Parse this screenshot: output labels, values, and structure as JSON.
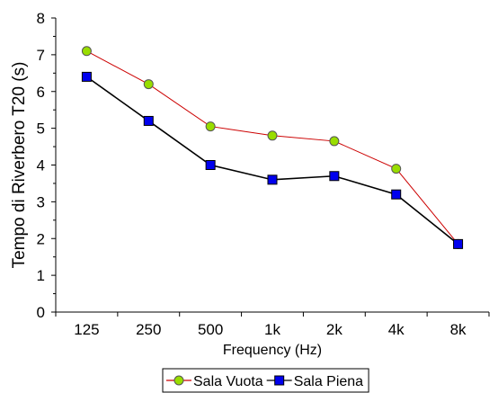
{
  "chart_data": {
    "type": "line",
    "categories": [
      "125",
      "250",
      "500",
      "1k",
      "2k",
      "4k",
      "8k"
    ],
    "series": [
      {
        "name": "Sala Vuota",
        "values": [
          7.1,
          6.2,
          5.05,
          4.8,
          4.65,
          3.9,
          1.85
        ],
        "color": "#cc0000",
        "marker": "circle",
        "marker_fill": "#99dd00"
      },
      {
        "name": "Sala Piena",
        "values": [
          6.4,
          5.2,
          4.0,
          3.6,
          3.7,
          3.2,
          1.85
        ],
        "color": "#000000",
        "marker": "square",
        "marker_fill": "#0000ee"
      }
    ],
    "xlabel": "Frequency (Hz)",
    "ylabel": "Tempo di Riverbero T20 (s)",
    "ylim": [
      0,
      8
    ],
    "yticks": [
      "0",
      "1",
      "2",
      "3",
      "4",
      "5",
      "6",
      "7",
      "8"
    ],
    "grid": false,
    "legend_position": "bottom"
  }
}
